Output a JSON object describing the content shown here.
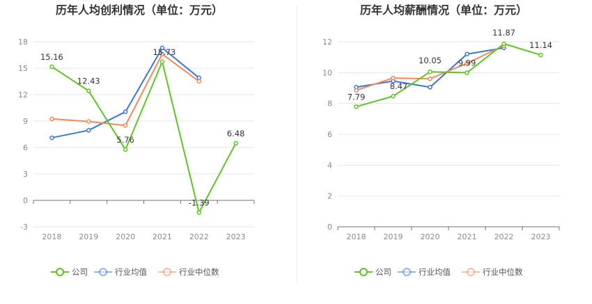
{
  "chart_data": [
    {
      "type": "line",
      "title": "历年人均创利情况（单位：万元）",
      "categories": [
        "2018",
        "2019",
        "2020",
        "2021",
        "2022",
        "2023"
      ],
      "ylim": [
        -3,
        18
      ],
      "yticks": [
        "-3",
        "0",
        "3",
        "6",
        "9",
        "12",
        "15",
        "18"
      ],
      "series": [
        {
          "name": "公司",
          "color": "#5fc325",
          "values": [
            15.16,
            12.43,
            5.76,
            15.73,
            -1.39,
            6.48
          ],
          "labels": [
            "15.16",
            "12.43",
            "5.76",
            "15.73",
            "-1.39",
            "6.48"
          ]
        },
        {
          "name": "行业均值",
          "color": "#3a78d8",
          "values": [
            7.1,
            7.95,
            10.05,
            17.3,
            13.9,
            null
          ]
        },
        {
          "name": "行业中位数",
          "color": "#f28a5c",
          "values": [
            9.25,
            8.95,
            8.5,
            16.6,
            13.5,
            null
          ]
        }
      ],
      "legend": "bottom"
    },
    {
      "type": "line",
      "title": "历年人均薪酬情况（单位：万元）",
      "categories": [
        "2018",
        "2019",
        "2020",
        "2021",
        "2022",
        "2023"
      ],
      "ylim": [
        0,
        12
      ],
      "yticks": [
        "0",
        "2",
        "4",
        "6",
        "8",
        "10",
        "12"
      ],
      "series": [
        {
          "name": "公司",
          "color": "#5fc325",
          "values": [
            7.79,
            8.47,
            10.05,
            9.99,
            11.87,
            11.14
          ],
          "labels": [
            "7.79",
            "8.47",
            "10.05",
            "9.99",
            "11.87",
            "11.14"
          ]
        },
        {
          "name": "行业均值",
          "color": "#3a78d8",
          "values": [
            9.05,
            9.45,
            9.05,
            11.2,
            11.6,
            null
          ]
        },
        {
          "name": "行业中位数",
          "color": "#f28a5c",
          "values": [
            8.85,
            9.65,
            9.6,
            10.6,
            11.75,
            null
          ]
        }
      ],
      "legend": "bottom"
    }
  ]
}
